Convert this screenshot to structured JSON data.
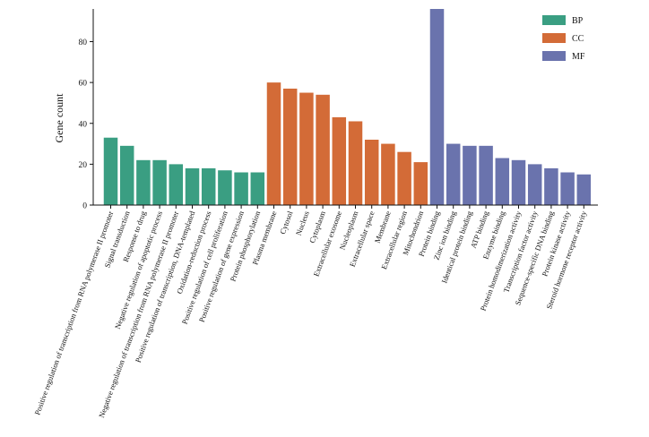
{
  "chart_data": {
    "type": "bar",
    "title": "",
    "xlabel": "",
    "ylabel": "Gene count",
    "ylim": [
      0,
      96
    ],
    "yticks": [
      0,
      20,
      40,
      60,
      80
    ],
    "grid": false,
    "legend_position": "top-right",
    "series": [
      {
        "name": "BP",
        "color": "#3a9e82"
      },
      {
        "name": "CC",
        "color": "#d36b37"
      },
      {
        "name": "MF",
        "color": "#6a73ad"
      }
    ],
    "categories": [
      "Positive regulation of transcription from RNA polymerase II promoter",
      "Signal transduction",
      "Response to drug",
      "Negative regulation of apoptotic process",
      "Negative regulation of transcription from RNA polymerase II promoter",
      "Positive regulation of transcription, DNA-templated",
      "Oxidation-reduction process",
      "Positive regulation of cell proliferation",
      "Positive regulation of gene expression",
      "Protein phosphorylation",
      "Plasma membrane",
      "Cytosol",
      "Nucleus",
      "Cytoplasm",
      "Extracellular exosome",
      "Nucleoplasm",
      "Extracellular space",
      "Membrane",
      "Extracellular region",
      "Mitochondrion",
      "Protein binding",
      "Zinc ion binding",
      "Identical protein binding",
      "ATP binding",
      "Enzyme binding",
      "Protein homodimerization activity",
      "Transcription factor activity",
      "Sequence-specific DNA binding",
      "Protein kinase activity",
      "Steroid hormone receptor activity"
    ],
    "values": [
      33,
      29,
      22,
      22,
      20,
      18,
      18,
      17,
      16,
      16,
      60,
      57,
      55,
      54,
      43,
      41,
      32,
      30,
      26,
      21,
      96,
      30,
      29,
      29,
      23,
      22,
      20,
      18,
      16,
      15
    ],
    "groups": [
      "BP",
      "BP",
      "BP",
      "BP",
      "BP",
      "BP",
      "BP",
      "BP",
      "BP",
      "BP",
      "CC",
      "CC",
      "CC",
      "CC",
      "CC",
      "CC",
      "CC",
      "CC",
      "CC",
      "CC",
      "MF",
      "MF",
      "MF",
      "MF",
      "MF",
      "MF",
      "MF",
      "MF",
      "MF",
      "MF"
    ]
  }
}
